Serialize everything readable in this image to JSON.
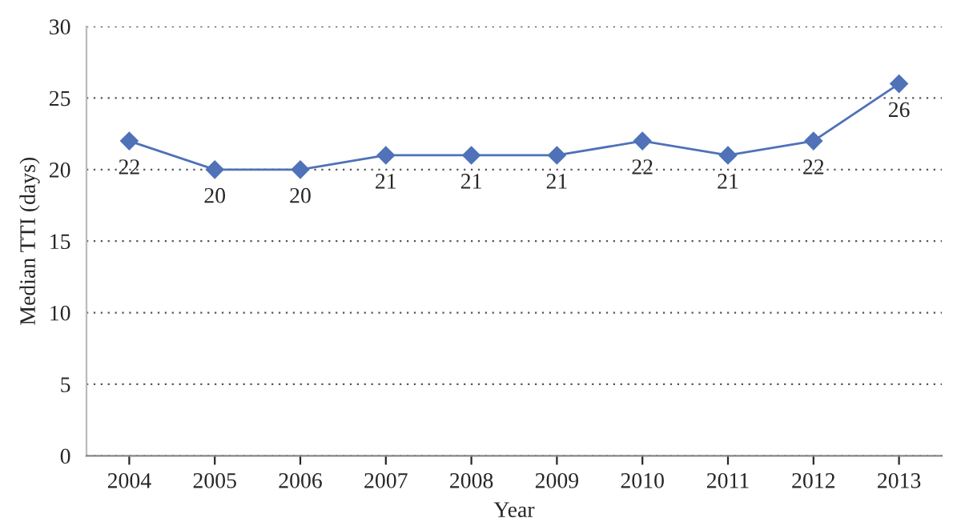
{
  "chart_data": {
    "type": "line",
    "xlabel": "Year",
    "ylabel": "Median TTI (days)",
    "categories": [
      "2004",
      "2005",
      "2006",
      "2007",
      "2008",
      "2009",
      "2010",
      "2011",
      "2012",
      "2013"
    ],
    "series": [
      {
        "color": "#4f72b8",
        "values": [
          22,
          20,
          20,
          21,
          21,
          21,
          22,
          21,
          22,
          26
        ]
      }
    ],
    "ylim": [
      0,
      30
    ],
    "yticks": [
      0,
      5,
      10,
      15,
      20,
      25,
      30
    ],
    "grid": "y",
    "marker": "diamond",
    "line_style": "solid",
    "data_labels": true
  }
}
